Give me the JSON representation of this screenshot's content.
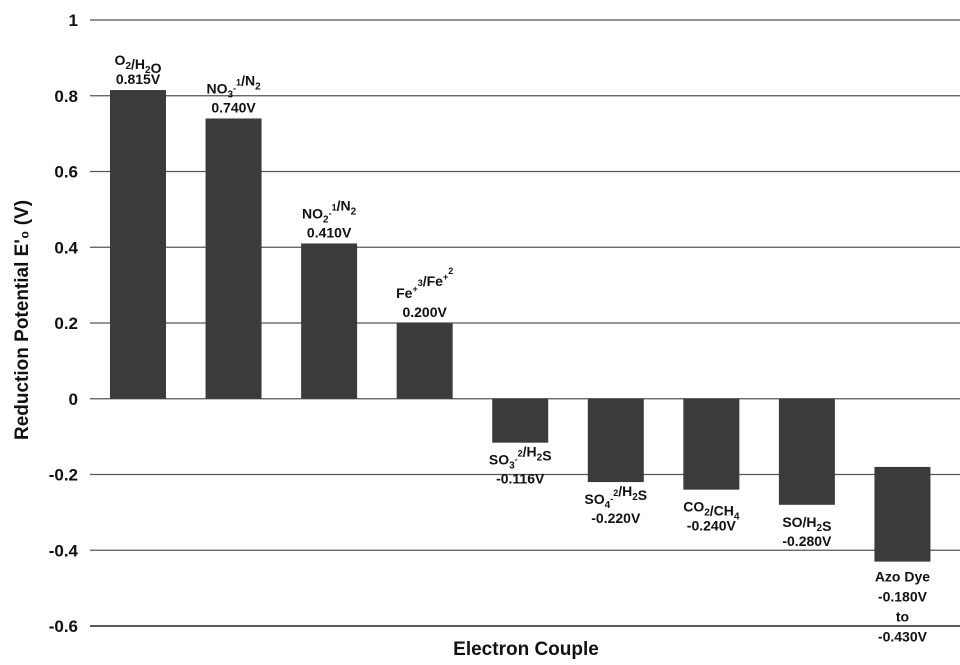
{
  "chart_data": {
    "type": "bar",
    "xlabel": "Electron Couple",
    "ylabel": "Reduction Potential E'₀ (V)",
    "ylim": [
      -0.6,
      1
    ],
    "yticks": [
      "-0.6",
      "-0.4",
      "-0.2",
      "0",
      "0.2",
      "0.4",
      "0.6",
      "0.8",
      "1"
    ],
    "grid": true,
    "bar_color": "#3b3b3b",
    "bars": [
      {
        "category": "O₂/H₂O",
        "value": 0.815,
        "label": "0.815V"
      },
      {
        "category": "NO₃⁻¹/N₂",
        "value": 0.74,
        "label": "0.740V"
      },
      {
        "category": "NO₂⁻¹/N₂",
        "value": 0.41,
        "label": "0.410V"
      },
      {
        "category": "Fe⁺³/Fe⁺²",
        "value": 0.2,
        "label": "0.200V"
      },
      {
        "category": "SO₃⁻²/H₂S",
        "value": -0.116,
        "label": "-0.116V"
      },
      {
        "category": "SO₄⁻²/H₂S",
        "value": -0.22,
        "label": "-0.220V"
      },
      {
        "category": "CO₂/CH₄",
        "value": -0.24,
        "label": "-0.240V"
      },
      {
        "category": "SO/H₂S",
        "value": -0.28,
        "label": "-0.280V"
      },
      {
        "category": "Azo Dye",
        "range": [
          -0.18,
          -0.43
        ],
        "label_lines": [
          "-0.180V",
          "to",
          "-0.430V"
        ]
      }
    ]
  }
}
